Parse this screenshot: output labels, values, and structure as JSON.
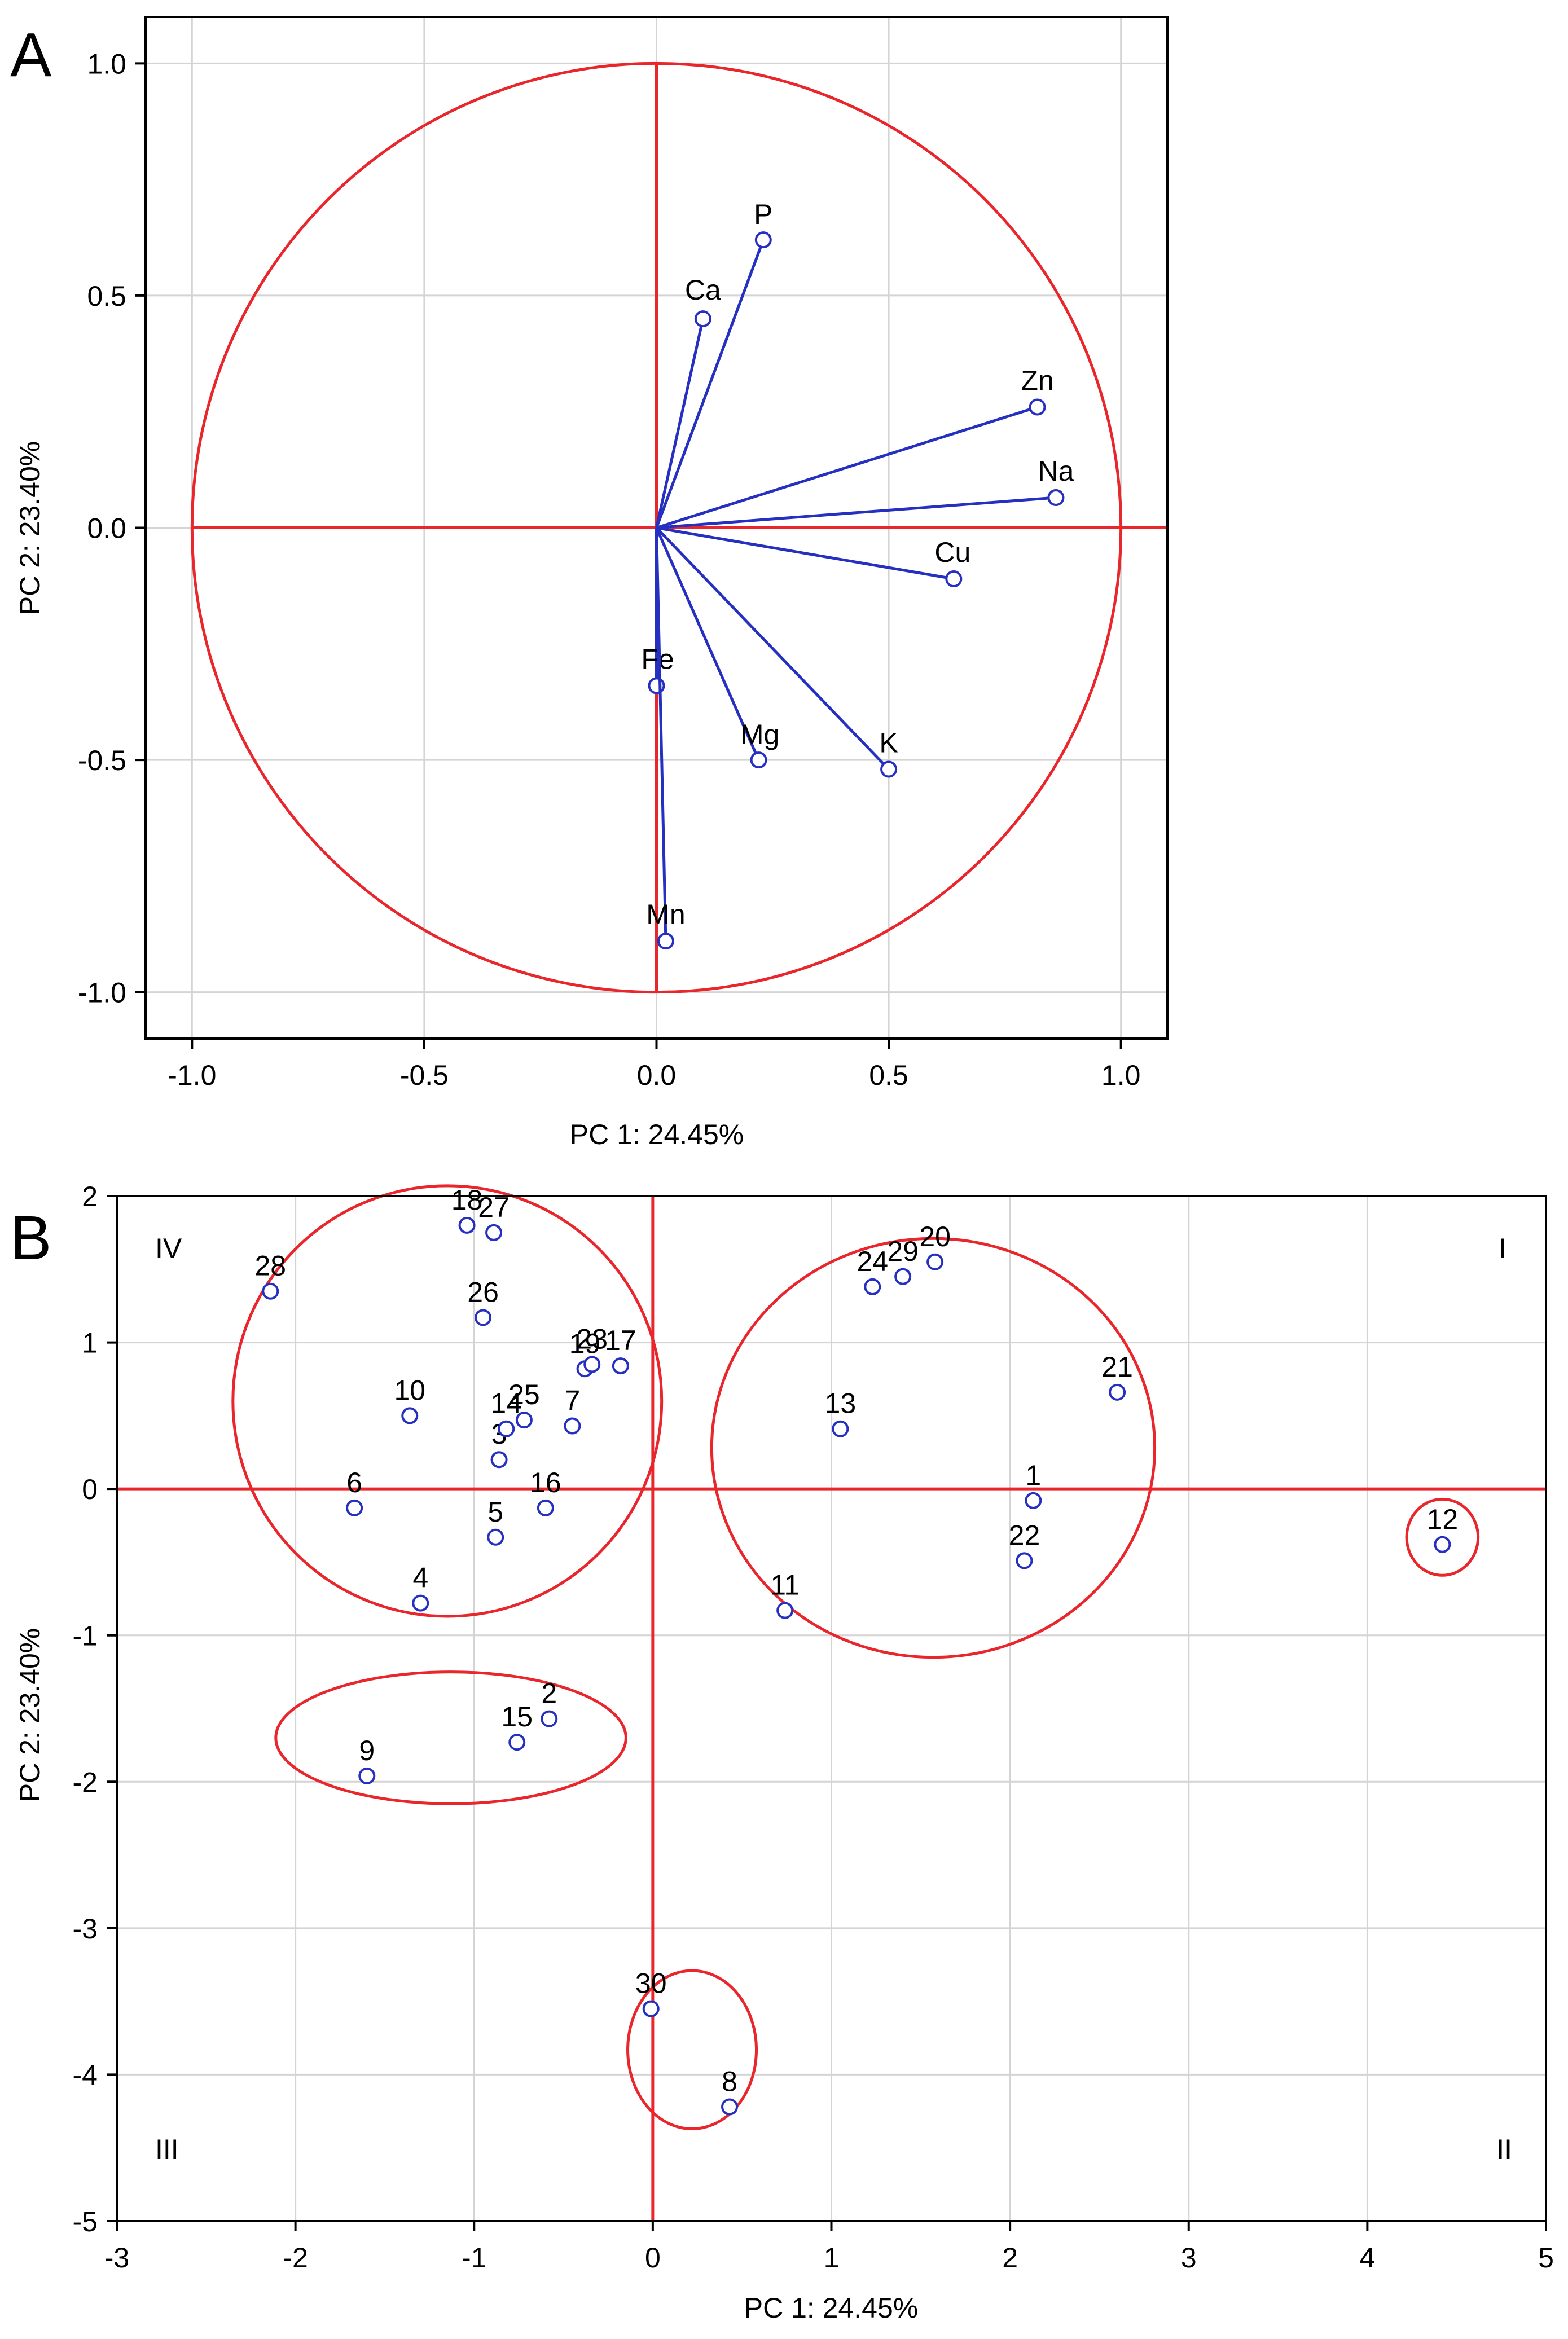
{
  "figure": {
    "panel_a_letter": "A",
    "panel_b_letter": "B"
  },
  "colors": {
    "reference_lines": "#e8262b",
    "markers": "#2630c0",
    "grid": "#d4d4d4"
  },
  "chart_data": [
    {
      "panel": "A",
      "type": "scatter",
      "subtype": "loading-vector plot with unit correlation circle",
      "xlabel": "PC 1: 24.45%",
      "ylabel": "PC 2: 23.40%",
      "xlim": [
        -1.1,
        1.1
      ],
      "ylim": [
        -1.1,
        1.1
      ],
      "xticks": [
        -1.0,
        -0.5,
        0.0,
        0.5,
        1.0
      ],
      "yticks": [
        -1.0,
        -0.5,
        0.0,
        0.5,
        1.0
      ],
      "xtick_labels": [
        "-1.0",
        "-0.5",
        "0.0",
        "0.5",
        "1.0"
      ],
      "ytick_labels": [
        "-1.0",
        "-0.5",
        "0.0",
        "0.5",
        "1.0"
      ],
      "grid": true,
      "reference_lines": {
        "x": 0,
        "y": 0
      },
      "circle": {
        "center": [
          0,
          0
        ],
        "radius": 1.0
      },
      "vectors": [
        {
          "label": "P",
          "x": 0.23,
          "y": 0.62
        },
        {
          "label": "Ca",
          "x": 0.1,
          "y": 0.45
        },
        {
          "label": "Zn",
          "x": 0.82,
          "y": 0.26
        },
        {
          "label": "Na",
          "x": 0.86,
          "y": 0.065
        },
        {
          "label": "Cu",
          "x": 0.64,
          "y": -0.11
        },
        {
          "label": "Fe",
          "x": 0.0,
          "y": -0.34
        },
        {
          "label": "Mg",
          "x": 0.22,
          "y": -0.5
        },
        {
          "label": "K",
          "x": 0.5,
          "y": -0.52
        },
        {
          "label": "Mn",
          "x": 0.02,
          "y": -0.89
        }
      ]
    },
    {
      "panel": "B",
      "type": "scatter",
      "subtype": "sample score plot",
      "xlabel": "PC 1: 24.45%",
      "ylabel": "PC 2: 23.40%",
      "xlim": [
        -3,
        5
      ],
      "ylim": [
        -5,
        2
      ],
      "xticks": [
        -3,
        -2,
        -1,
        0,
        1,
        2,
        3,
        4,
        5
      ],
      "yticks": [
        -5,
        -4,
        -3,
        -2,
        -1,
        0,
        1,
        2
      ],
      "xtick_labels": [
        "-3",
        "-2",
        "-1",
        "0",
        "1",
        "2",
        "3",
        "4",
        "5"
      ],
      "ytick_labels": [
        "-5",
        "-4",
        "-3",
        "-2",
        "-1",
        "0",
        "1",
        "2"
      ],
      "grid": true,
      "reference_lines": {
        "x": 0,
        "y": 0
      },
      "quadrant_labels": [
        {
          "text": "I",
          "corner": "top-right"
        },
        {
          "text": "II",
          "corner": "bottom-right"
        },
        {
          "text": "III",
          "corner": "bottom-left"
        },
        {
          "text": "IV",
          "corner": "top-left"
        }
      ],
      "points": [
        {
          "label": "1",
          "x": 2.13,
          "y": -0.08
        },
        {
          "label": "2",
          "x": -0.58,
          "y": -1.57
        },
        {
          "label": "3",
          "x": -0.86,
          "y": 0.2
        },
        {
          "label": "4",
          "x": -1.3,
          "y": -0.78
        },
        {
          "label": "5",
          "x": -0.88,
          "y": -0.33
        },
        {
          "label": "6",
          "x": -1.67,
          "y": -0.13
        },
        {
          "label": "7",
          "x": -0.45,
          "y": 0.43
        },
        {
          "label": "8",
          "x": 0.43,
          "y": -4.22
        },
        {
          "label": "9",
          "x": -1.6,
          "y": -1.96
        },
        {
          "label": "10",
          "x": -1.36,
          "y": 0.5
        },
        {
          "label": "11",
          "x": 0.74,
          "y": -0.83
        },
        {
          "label": "12",
          "x": 4.42,
          "y": -0.38
        },
        {
          "label": "13",
          "x": 1.05,
          "y": 0.41
        },
        {
          "label": "14",
          "x": -0.82,
          "y": 0.41
        },
        {
          "label": "15",
          "x": -0.76,
          "y": -1.73
        },
        {
          "label": "16",
          "x": -0.6,
          "y": -0.13
        },
        {
          "label": "17",
          "x": -0.18,
          "y": 0.84
        },
        {
          "label": "18",
          "x": -1.04,
          "y": 1.8
        },
        {
          "label": "19",
          "x": -0.38,
          "y": 0.82
        },
        {
          "label": "20",
          "x": 1.58,
          "y": 1.55
        },
        {
          "label": "21",
          "x": 2.6,
          "y": 0.66
        },
        {
          "label": "22",
          "x": 2.08,
          "y": -0.49
        },
        {
          "label": "23",
          "x": -0.34,
          "y": 0.85
        },
        {
          "label": "24",
          "x": 1.23,
          "y": 1.38
        },
        {
          "label": "25",
          "x": -0.72,
          "y": 0.47
        },
        {
          "label": "26",
          "x": -0.95,
          "y": 1.17
        },
        {
          "label": "27",
          "x": -0.89,
          "y": 1.75
        },
        {
          "label": "28",
          "x": -2.14,
          "y": 1.35
        },
        {
          "label": "29",
          "x": 1.4,
          "y": 1.45
        },
        {
          "label": "30",
          "x": -0.01,
          "y": -3.55
        }
      ],
      "group_ellipses": [
        {
          "cx": -1.15,
          "cy": 0.6,
          "rx": 1.2,
          "ry": 1.47
        },
        {
          "cx": 1.57,
          "cy": 0.28,
          "rx": 1.24,
          "ry": 1.43
        },
        {
          "cx": -1.13,
          "cy": -1.7,
          "rx": 0.98,
          "ry": 0.45
        },
        {
          "cx": 0.22,
          "cy": -3.83,
          "rx": 0.36,
          "ry": 0.54
        },
        {
          "cx": 4.42,
          "cy": -0.33,
          "rx": 0.2,
          "ry": 0.26
        }
      ]
    }
  ]
}
